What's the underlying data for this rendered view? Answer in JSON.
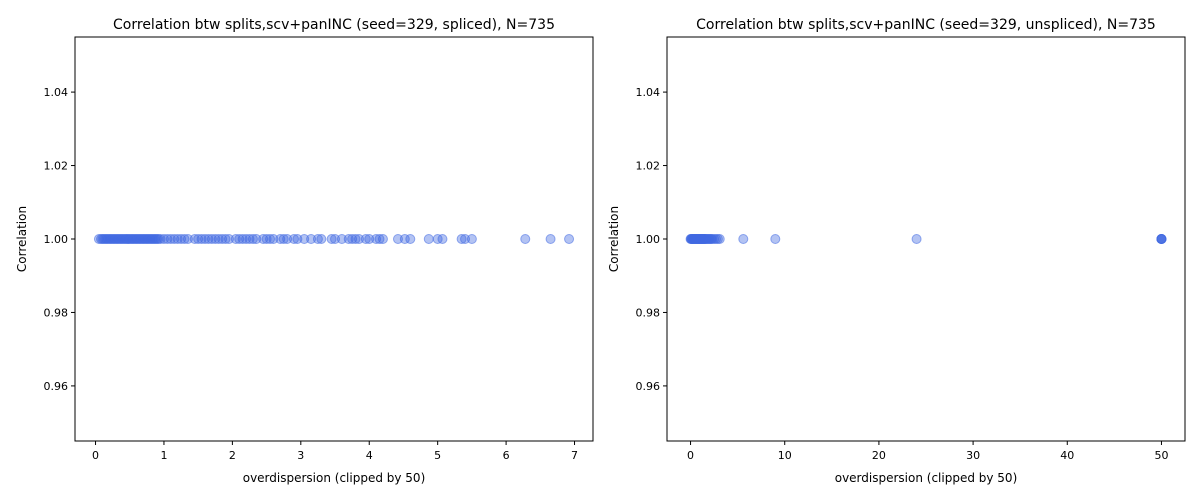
{
  "chart_data": [
    {
      "type": "scatter",
      "title": "Correlation btw splits,scv+panINC (seed=329, spliced), N=735",
      "xlabel": "overdispersion (clipped by 50)",
      "ylabel": "Correlation",
      "xlim": [
        -0.3,
        7.27
      ],
      "ylim": [
        0.945,
        1.055
      ],
      "xticks": [
        0,
        1,
        2,
        3,
        4,
        5,
        6,
        7
      ],
      "xtick_labels": [
        "0",
        "1",
        "2",
        "3",
        "4",
        "5",
        "6",
        "7"
      ],
      "yticks": [
        0.96,
        0.98,
        1.0,
        1.02,
        1.04
      ],
      "ytick_labels": [
        "0.96",
        "0.98",
        "1.00",
        "1.02",
        "1.04"
      ],
      "grid": false,
      "point_color": "#4169e1",
      "x": [
        0.05,
        0.08,
        0.1,
        0.12,
        0.14,
        0.16,
        0.18,
        0.2,
        0.22,
        0.24,
        0.26,
        0.28,
        0.3,
        0.32,
        0.34,
        0.36,
        0.38,
        0.4,
        0.42,
        0.44,
        0.46,
        0.48,
        0.5,
        0.52,
        0.54,
        0.56,
        0.58,
        0.6,
        0.62,
        0.64,
        0.66,
        0.68,
        0.7,
        0.72,
        0.74,
        0.76,
        0.78,
        0.8,
        0.82,
        0.84,
        0.86,
        0.88,
        0.9,
        0.92,
        0.95,
        1.0,
        1.05,
        1.1,
        1.15,
        1.2,
        1.25,
        1.3,
        1.35,
        1.45,
        1.5,
        1.55,
        1.6,
        1.65,
        1.7,
        1.75,
        1.8,
        1.85,
        1.9,
        1.95,
        2.05,
        2.1,
        2.15,
        2.2,
        2.25,
        2.3,
        2.35,
        2.45,
        2.5,
        2.55,
        2.6,
        2.7,
        2.75,
        2.8,
        2.9,
        2.95,
        3.05,
        3.15,
        3.25,
        3.3,
        3.45,
        3.5,
        3.6,
        3.7,
        3.75,
        3.8,
        3.85,
        3.95,
        4.0,
        4.1,
        4.15,
        4.2,
        4.42,
        4.52,
        4.6,
        4.87,
        5.0,
        5.07,
        5.35,
        5.4,
        5.5,
        6.28,
        6.65,
        6.92
      ],
      "y": [
        1.0,
        1.0,
        1.0,
        1.0,
        1.0,
        1.0,
        1.0,
        1.0,
        1.0,
        1.0,
        1.0,
        1.0,
        1.0,
        1.0,
        1.0,
        1.0,
        1.0,
        1.0,
        1.0,
        1.0,
        1.0,
        1.0,
        1.0,
        1.0,
        1.0,
        1.0,
        1.0,
        1.0,
        1.0,
        1.0,
        1.0,
        1.0,
        1.0,
        1.0,
        1.0,
        1.0,
        1.0,
        1.0,
        1.0,
        1.0,
        1.0,
        1.0,
        1.0,
        1.0,
        1.0,
        1.0,
        1.0,
        1.0,
        1.0,
        1.0,
        1.0,
        1.0,
        1.0,
        1.0,
        1.0,
        1.0,
        1.0,
        1.0,
        1.0,
        1.0,
        1.0,
        1.0,
        1.0,
        1.0,
        1.0,
        1.0,
        1.0,
        1.0,
        1.0,
        1.0,
        1.0,
        1.0,
        1.0,
        1.0,
        1.0,
        1.0,
        1.0,
        1.0,
        1.0,
        1.0,
        1.0,
        1.0,
        1.0,
        1.0,
        1.0,
        1.0,
        1.0,
        1.0,
        1.0,
        1.0,
        1.0,
        1.0,
        1.0,
        1.0,
        1.0,
        1.0,
        1.0,
        1.0,
        1.0,
        1.0,
        1.0,
        1.0,
        1.0,
        1.0,
        1.0,
        1.0,
        1.0,
        1.0
      ]
    },
    {
      "type": "scatter",
      "title": "Correlation btw splits,scv+panINC (seed=329, unspliced), N=735",
      "xlabel": "overdispersion (clipped by 50)",
      "ylabel": "Correlation",
      "xlim": [
        -2.5,
        52.5
      ],
      "ylim": [
        0.945,
        1.055
      ],
      "xticks": [
        0,
        10,
        20,
        30,
        40,
        50
      ],
      "xtick_labels": [
        "0",
        "10",
        "20",
        "30",
        "40",
        "50"
      ],
      "yticks": [
        0.96,
        0.98,
        1.0,
        1.02,
        1.04
      ],
      "ytick_labels": [
        "0.96",
        "0.98",
        "1.00",
        "1.02",
        "1.04"
      ],
      "grid": false,
      "point_color": "#4169e1",
      "x": [
        0.0,
        0.05,
        0.1,
        0.15,
        0.2,
        0.25,
        0.3,
        0.35,
        0.4,
        0.45,
        0.5,
        0.55,
        0.6,
        0.65,
        0.7,
        0.75,
        0.8,
        0.85,
        0.9,
        0.95,
        1.0,
        1.05,
        1.1,
        1.15,
        1.2,
        1.25,
        1.3,
        1.35,
        1.4,
        1.45,
        1.5,
        1.55,
        1.6,
        1.7,
        1.8,
        1.9,
        2.0,
        2.1,
        2.2,
        2.3,
        2.5,
        2.7,
        2.9,
        3.1,
        5.6,
        9.0,
        24.0,
        50.0,
        50.0,
        50.0,
        50.0,
        50.0
      ],
      "y": [
        1.0,
        1.0,
        1.0,
        1.0,
        1.0,
        1.0,
        1.0,
        1.0,
        1.0,
        1.0,
        1.0,
        1.0,
        1.0,
        1.0,
        1.0,
        1.0,
        1.0,
        1.0,
        1.0,
        1.0,
        1.0,
        1.0,
        1.0,
        1.0,
        1.0,
        1.0,
        1.0,
        1.0,
        1.0,
        1.0,
        1.0,
        1.0,
        1.0,
        1.0,
        1.0,
        1.0,
        1.0,
        1.0,
        1.0,
        1.0,
        1.0,
        1.0,
        1.0,
        1.0,
        1.0,
        1.0,
        1.0,
        1.0,
        1.0,
        1.0,
        1.0,
        1.0
      ]
    }
  ]
}
